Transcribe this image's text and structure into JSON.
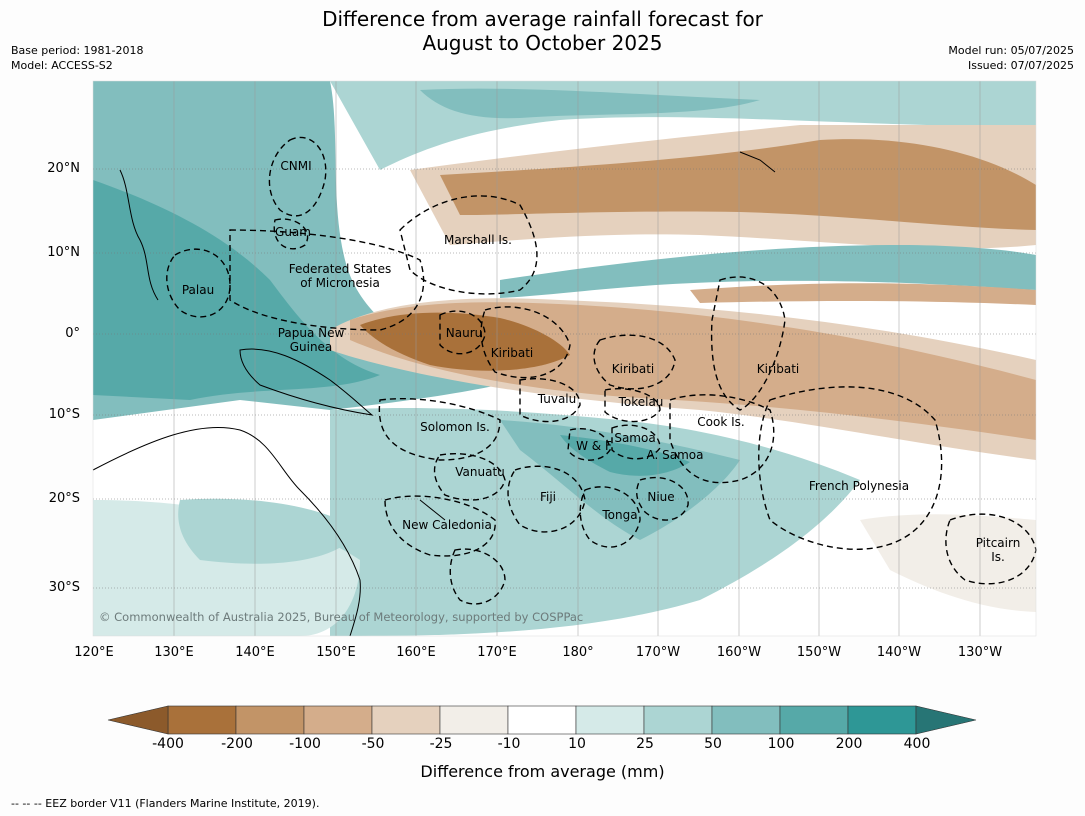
{
  "title_line1": "Difference from average rainfall forecast for",
  "title_line2": "August to October 2025",
  "meta_left": {
    "line1": "Base period: 1981-2018",
    "line2": "Model: ACCESS-S2"
  },
  "meta_right": {
    "line1": "Model run: 05/07/2025",
    "line2": "Issued: 07/07/2025"
  },
  "lat_ticks": [
    "20°N",
    "10°N",
    "0°",
    "10°S",
    "20°S",
    "30°S"
  ],
  "lon_ticks": [
    "120°E",
    "130°E",
    "140°E",
    "150°E",
    "160°E",
    "170°E",
    "180°",
    "170°W",
    "160°W",
    "150°W",
    "140°W",
    "130°W"
  ],
  "regions": {
    "cnmi": "CNMI",
    "guam": "Guam",
    "marshall": "Marshall Is.",
    "fsm1": "Federated States",
    "fsm2": "of Micronesia",
    "palau": "Palau",
    "png1": "Papua New",
    "png2": "Guinea",
    "nauru": "Nauru",
    "kiribati_w": "Kiribati",
    "kiribati_c": "Kiribati",
    "kiribati_e": "Kiribati",
    "tuvalu": "Tuvalu",
    "tokelau": "Tokelau",
    "cook": "Cook Is.",
    "solomon": "Solomon Is.",
    "wf": "W & F",
    "samoa": "Samoa",
    "asamoa": "A. Samoa",
    "vanuatu": "Vanuatu",
    "fiji": "Fiji",
    "niue": "Niue",
    "tonga": "Tonga",
    "fp": "French Polynesia",
    "newcal": "New Caledonia",
    "pitcairn1": "Pitcairn",
    "pitcairn2": "Is."
  },
  "copyright": "© Commonwealth of Australia 2025, Bureau of Meteorology, supported by COSPPac",
  "colorbar": {
    "ticks": [
      "-400",
      "-200",
      "-100",
      "-50",
      "-25",
      "-10",
      "10",
      "25",
      "50",
      "100",
      "200",
      "400"
    ],
    "colors": [
      "#a9713a",
      "#c29467",
      "#d4ad8b",
      "#e5d1be",
      "#f2eee8",
      "#ffffff",
      "#d5eae8",
      "#acd5d3",
      "#82bebe",
      "#56a9a8",
      "#2e9796"
    ],
    "under_color": "#8c5a2b",
    "over_color": "#277575",
    "label": "Difference from average (mm)"
  },
  "footnote": "--  --  -- EEZ border V11 (Flanders Marine Institute, 2019)."
}
